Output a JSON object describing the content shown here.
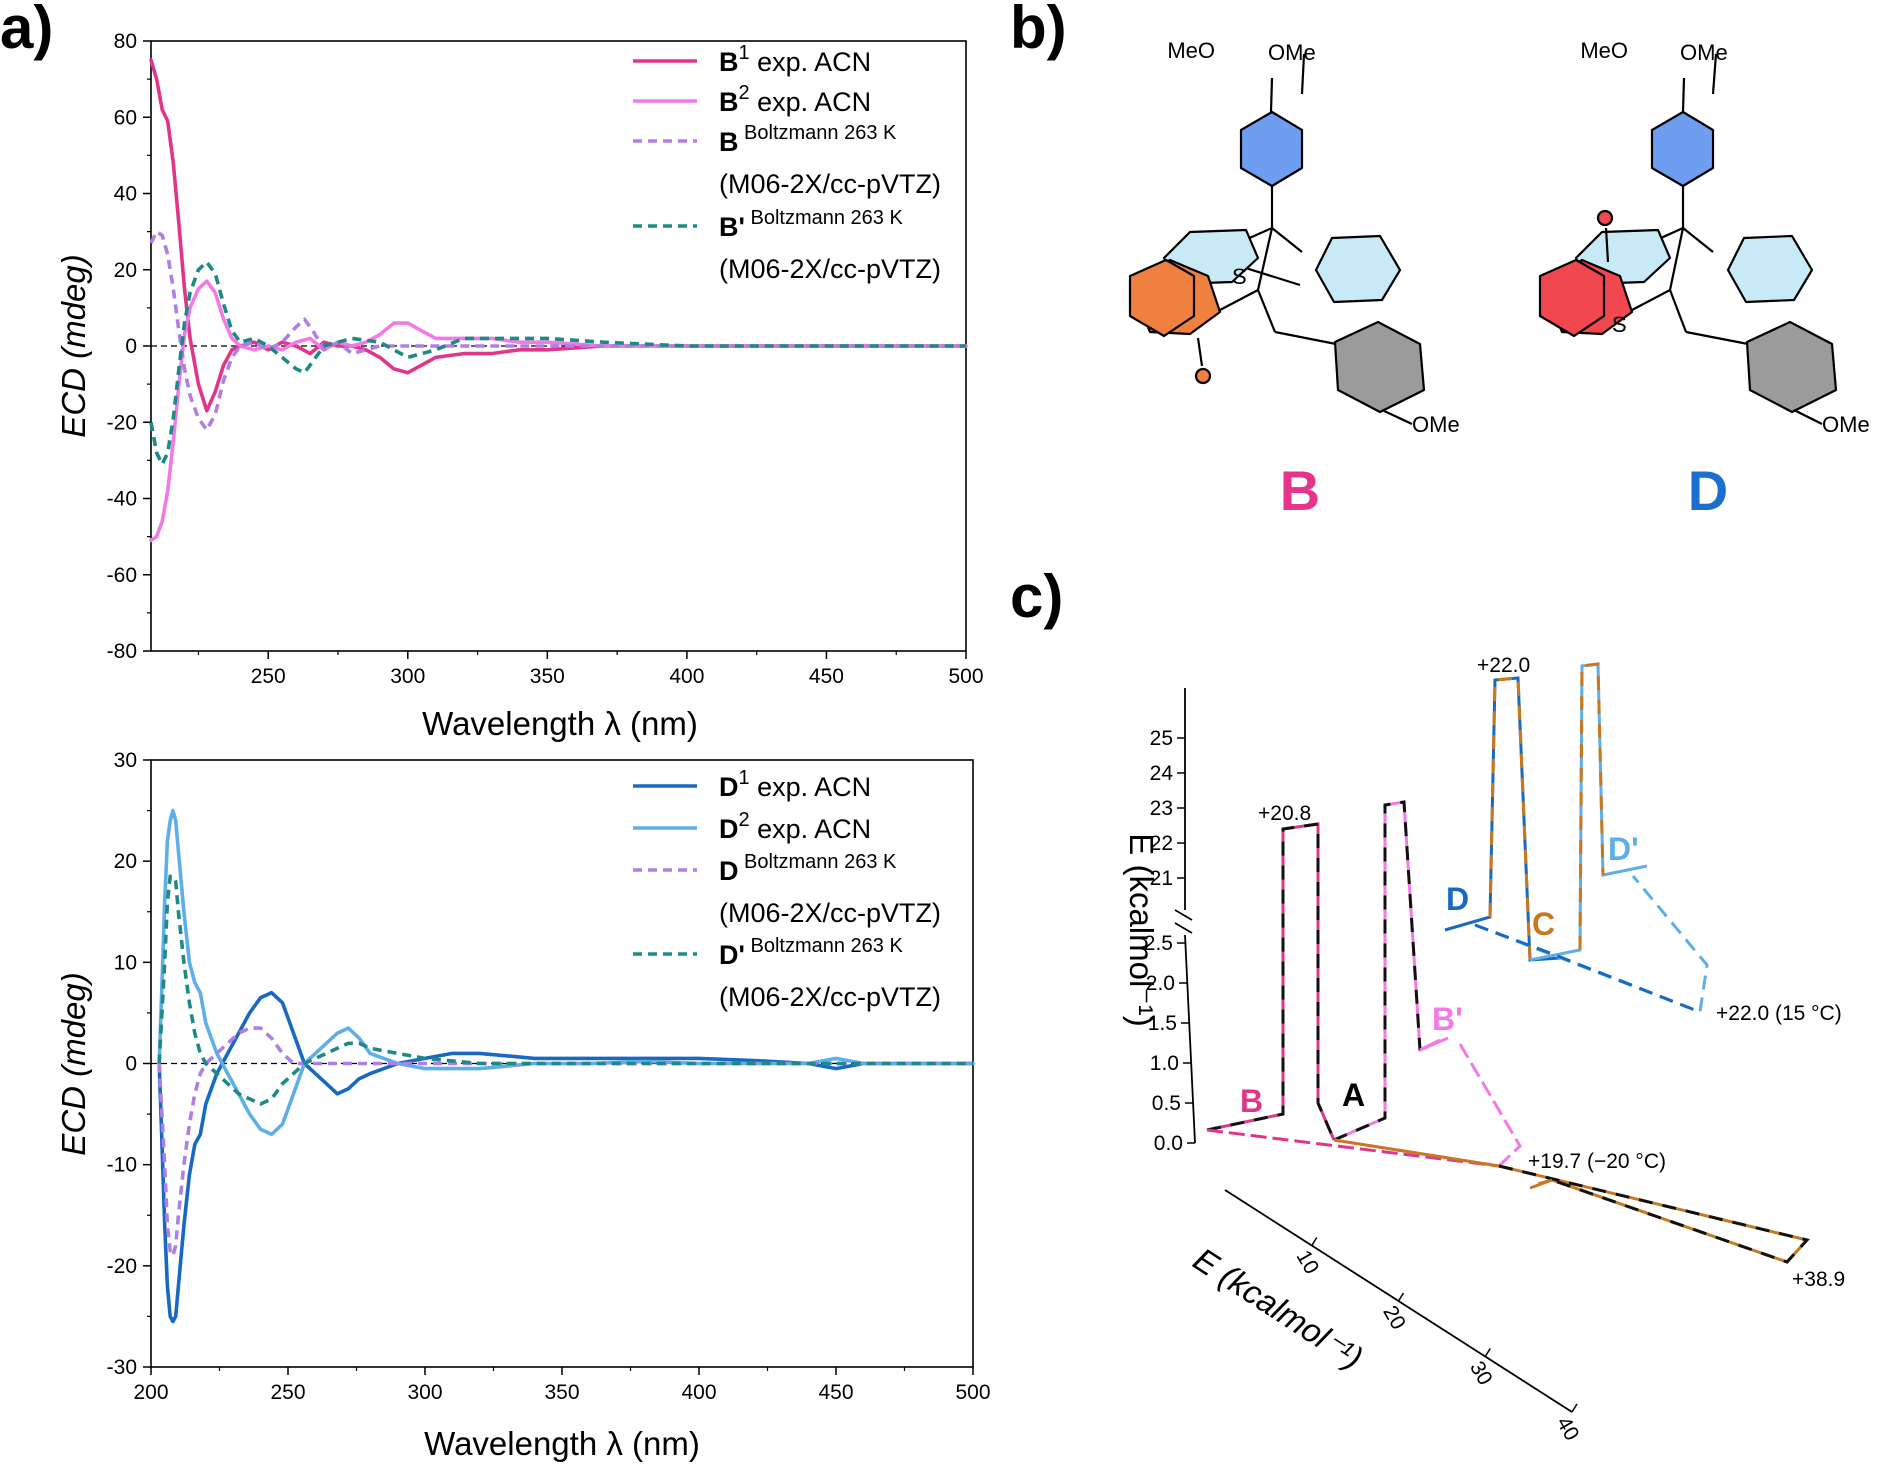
{
  "panels": {
    "a": "a)",
    "b": "b)",
    "c": "c)"
  },
  "colors": {
    "B1": "#e0368a",
    "B2": "#f27ae6",
    "Bboltz": "#b07fe6",
    "Bprime": "#1d8a86",
    "D1": "#1869c2",
    "D2": "#5eaee8",
    "Dboltz": "#b07fe6",
    "Dprime": "#1d8a86",
    "orange_ring": "#f08040",
    "red_ring": "#f0484e",
    "blue_ring": "#6f9ef0",
    "light_ring": "#c8eaf7",
    "grey_ring": "#9b9b9b",
    "C_color": "#c8781e",
    "B_label": "#e8338a",
    "D_label": "#1a6fd1"
  },
  "chart_data": [
    {
      "type": "line",
      "panel": "a",
      "xlabel": "Wavelength λ (nm)",
      "ylabel": "ECD (mdeg)",
      "xlim": [
        208,
        500
      ],
      "ylim": [
        -80,
        80
      ],
      "xticks": [
        250,
        300,
        350,
        400,
        450,
        500
      ],
      "yticks": [
        80,
        60,
        40,
        20,
        0,
        -20,
        -40,
        -60,
        -80
      ],
      "zero_line": "dashed",
      "legend_position": "top-right",
      "legend": [
        {
          "key": "B1",
          "bold": "B",
          "sup": "1",
          "text": " exp. ACN",
          "style": "solid"
        },
        {
          "key": "B2",
          "bold": "B",
          "sup": "2",
          "text": " exp. ACN",
          "style": "solid"
        },
        {
          "key": "Bboltz",
          "bold": "B",
          "sup": " Boltzmann 263 K",
          "text": "",
          "line2": "(M06-2X/cc-pVTZ)",
          "style": "dashed"
        },
        {
          "key": "Bprime",
          "bold": "B'",
          "sup": " Boltzmann 263 K",
          "text": "",
          "line2": "(M06-2X/cc-pVTZ)",
          "style": "dashed"
        }
      ],
      "series": [
        {
          "key": "B1",
          "x": [
            208,
            210,
            212,
            214,
            216,
            218,
            220,
            222,
            225,
            228,
            231,
            234,
            237,
            240,
            245,
            250,
            255,
            260,
            265,
            270,
            275,
            280,
            285,
            290,
            295,
            300,
            305,
            310,
            320,
            330,
            340,
            350,
            370,
            400,
            450,
            500
          ],
          "y": [
            75,
            70,
            62,
            59,
            48,
            32,
            15,
            2,
            -10,
            -17,
            -12,
            -5,
            -1,
            0,
            1,
            -1,
            1,
            0,
            -2,
            1,
            0,
            0,
            -1,
            -3,
            -6,
            -7,
            -5,
            -3,
            -2,
            -2,
            -1,
            -1,
            0,
            0,
            0,
            0
          ]
        },
        {
          "key": "B2",
          "x": [
            208,
            210,
            212,
            214,
            216,
            218,
            220,
            222,
            225,
            228,
            231,
            234,
            237,
            240,
            245,
            250,
            255,
            260,
            265,
            270,
            275,
            280,
            285,
            290,
            295,
            300,
            305,
            310,
            320,
            330,
            340,
            350,
            370,
            400,
            450,
            500
          ],
          "y": [
            -51,
            -50,
            -46,
            -38,
            -25,
            -10,
            3,
            10,
            15,
            17,
            14,
            7,
            2,
            0,
            -1,
            0,
            -1,
            1,
            2,
            -1,
            1,
            0,
            1,
            3,
            6,
            6,
            4,
            2,
            2,
            2,
            1,
            1,
            0,
            0,
            0,
            0
          ]
        },
        {
          "key": "Bboltz",
          "x": [
            208,
            210,
            212,
            214,
            216,
            218,
            220,
            222,
            225,
            228,
            231,
            234,
            237,
            240,
            245,
            250,
            255,
            260,
            263,
            266,
            270,
            275,
            280,
            285,
            290,
            300,
            320,
            350,
            400,
            450,
            500
          ],
          "y": [
            27,
            30,
            29,
            24,
            15,
            4,
            -6,
            -13,
            -19,
            -22,
            -18,
            -9,
            -3,
            0,
            1,
            -1,
            1,
            5,
            7,
            4,
            -1,
            1,
            -2,
            -1,
            0,
            0,
            0,
            0,
            0,
            0,
            0
          ]
        },
        {
          "key": "Bprime",
          "x": [
            208,
            210,
            212,
            214,
            216,
            218,
            220,
            222,
            225,
            228,
            231,
            234,
            237,
            240,
            245,
            250,
            255,
            260,
            263,
            266,
            270,
            275,
            280,
            290,
            300,
            310,
            320,
            330,
            340,
            350,
            370,
            400,
            450,
            500
          ],
          "y": [
            -20,
            -28,
            -31,
            -28,
            -19,
            -6,
            6,
            14,
            20,
            22,
            19,
            11,
            4,
            1,
            2,
            0,
            -3,
            -6,
            -7,
            -4,
            0,
            1,
            2,
            1,
            -3,
            -1,
            2,
            2,
            2,
            2,
            1,
            0,
            0,
            0
          ]
        }
      ]
    },
    {
      "type": "line",
      "panel": "a",
      "xlabel": "Wavelength λ (nm)",
      "ylabel": "ECD (mdeg)",
      "xlim": [
        200,
        500
      ],
      "ylim": [
        -30,
        30
      ],
      "xticks": [
        200,
        250,
        300,
        350,
        400,
        450,
        500
      ],
      "yticks": [
        30,
        20,
        10,
        0,
        -10,
        -20,
        -30
      ],
      "zero_line": "dashed",
      "legend_position": "top-right",
      "legend": [
        {
          "key": "D1",
          "bold": "D",
          "sup": "1",
          "text": " exp. ACN",
          "style": "solid"
        },
        {
          "key": "D2",
          "bold": "D",
          "sup": "2",
          "text": " exp. ACN",
          "style": "solid"
        },
        {
          "key": "Dboltz",
          "bold": "D",
          "sup": " Boltzmann 263 K",
          "text": "",
          "line2": "(M06-2X/cc-pVTZ)",
          "style": "dashed"
        },
        {
          "key": "Dprime",
          "bold": "D'",
          "sup": " Boltzmann 263 K",
          "text": "",
          "line2": "(M06-2X/cc-pVTZ)",
          "style": "dashed"
        }
      ],
      "series": [
        {
          "key": "D1",
          "x": [
            203,
            204,
            205,
            206,
            207,
            208,
            209,
            210,
            212,
            214,
            216,
            218,
            220,
            224,
            228,
            232,
            236,
            240,
            244,
            248,
            252,
            256,
            260,
            264,
            268,
            272,
            276,
            280,
            290,
            300,
            310,
            320,
            340,
            360,
            380,
            400,
            420,
            440,
            450,
            460,
            480,
            500
          ],
          "y": [
            0,
            -8,
            -16,
            -22,
            -25,
            -25.5,
            -25,
            -22,
            -16,
            -11,
            -8,
            -7,
            -4,
            -1,
            1,
            3,
            5,
            6.5,
            7,
            6,
            3,
            0,
            -1,
            -2,
            -3,
            -2.5,
            -1.5,
            -1,
            0,
            0.5,
            1,
            1,
            0.5,
            0.5,
            0.5,
            0.5,
            0.3,
            0,
            -0.5,
            0,
            0,
            0
          ]
        },
        {
          "key": "D2",
          "x": [
            203,
            204,
            205,
            206,
            207,
            208,
            209,
            210,
            212,
            214,
            216,
            218,
            220,
            224,
            228,
            232,
            236,
            240,
            244,
            248,
            252,
            256,
            260,
            264,
            268,
            272,
            276,
            280,
            290,
            300,
            310,
            320,
            340,
            360,
            380,
            400,
            420,
            440,
            450,
            460,
            480,
            500
          ],
          "y": [
            0,
            8,
            16,
            22,
            24,
            25,
            24,
            21,
            15,
            10,
            8,
            7,
            4,
            1,
            -1,
            -3,
            -5,
            -6.5,
            -7,
            -6,
            -3,
            0,
            1,
            2,
            3,
            3.5,
            2.5,
            1,
            0,
            -0.5,
            -0.5,
            -0.5,
            0,
            0,
            0.2,
            0,
            0,
            0,
            0.5,
            0,
            0,
            0
          ]
        },
        {
          "key": "Dboltz",
          "x": [
            203,
            205,
            206,
            207,
            208,
            209,
            210,
            212,
            214,
            216,
            218,
            220,
            224,
            228,
            232,
            236,
            240,
            244,
            248,
            252,
            256,
            260,
            264,
            268,
            272,
            276,
            280,
            290,
            300,
            320,
            350,
            400,
            450,
            500
          ],
          "y": [
            0,
            -10,
            -16,
            -18.5,
            -19,
            -18,
            -15,
            -10,
            -6,
            -3,
            -1,
            0,
            1,
            2,
            3,
            3.5,
            3.5,
            2.5,
            1,
            0,
            0,
            0,
            0,
            0,
            0,
            0,
            0,
            0,
            0,
            0,
            0,
            0,
            0,
            0
          ]
        },
        {
          "key": "Dprime",
          "x": [
            203,
            205,
            206,
            207,
            208,
            209,
            210,
            212,
            214,
            216,
            218,
            220,
            224,
            228,
            232,
            236,
            240,
            244,
            248,
            252,
            256,
            260,
            264,
            268,
            272,
            276,
            280,
            290,
            300,
            320,
            350,
            400,
            450,
            500
          ],
          "y": [
            0,
            10,
            16,
            18.5,
            18.5,
            18,
            15,
            10,
            6,
            3,
            1,
            0,
            -1,
            -2,
            -3,
            -3.5,
            -4,
            -3.5,
            -2,
            -1,
            0,
            0.5,
            1,
            1.5,
            2,
            2,
            1.5,
            1,
            0.5,
            0,
            0,
            0,
            0,
            0
          ]
        }
      ]
    }
  ],
  "molecules": {
    "B": {
      "label": "B",
      "ome_top": "OMe",
      "meo": "MeO",
      "ome_bottom": "OMe",
      "s": "S"
    },
    "D": {
      "label": "D",
      "ome_top": "OMe",
      "meo": "MeO",
      "ome_bottom": "OMe",
      "s": "S"
    }
  },
  "energy_diagram": {
    "y_axis_label": "E (kcalmol⁻¹)",
    "diag_axis_label": "E (kcalmol⁻¹)",
    "y_ticks_low": [
      "0.0",
      "0.5",
      "1.0",
      "1.5",
      "2.0",
      "2.5"
    ],
    "y_ticks_high": [
      "21",
      "22",
      "23",
      "24",
      "25"
    ],
    "diag_ticks": [
      "10",
      "20",
      "30",
      "40"
    ],
    "nodes": [
      "B",
      "A",
      "B'",
      "D",
      "C",
      "D'"
    ],
    "barriers": [
      "+20.8",
      "+22.0",
      "+22.0 (15 °C)",
      "+19.7 (−20 °C)",
      "+38.9"
    ]
  }
}
